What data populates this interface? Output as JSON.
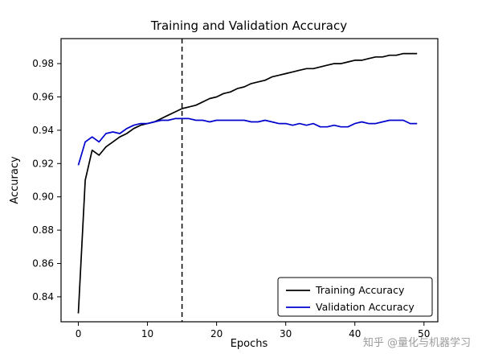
{
  "figure": {
    "title": "Training and Validation Accuracy",
    "xlabel": "Epochs",
    "ylabel": "Accuracy",
    "watermark": "知乎 @量化与机器学习"
  },
  "chart_data": {
    "type": "line",
    "title": "Training and Validation Accuracy",
    "xlabel": "Epochs",
    "ylabel": "Accuracy",
    "grid": false,
    "xlim": [
      -2.5,
      52
    ],
    "ylim": [
      0.825,
      0.995
    ],
    "xticks": [
      0,
      10,
      20,
      30,
      40,
      50
    ],
    "yticks": [
      0.84,
      0.86,
      0.88,
      0.9,
      0.92,
      0.94,
      0.96,
      0.98
    ],
    "vline_x": 15,
    "vline_style": "dashed",
    "legend": {
      "position": "lower right",
      "entries": [
        "Training Accuracy",
        "Validation Accuracy"
      ]
    },
    "x": [
      0,
      1,
      2,
      3,
      4,
      5,
      6,
      7,
      8,
      9,
      10,
      11,
      12,
      13,
      14,
      15,
      16,
      17,
      18,
      19,
      20,
      21,
      22,
      23,
      24,
      25,
      26,
      27,
      28,
      29,
      30,
      31,
      32,
      33,
      34,
      35,
      36,
      37,
      38,
      39,
      40,
      41,
      42,
      43,
      44,
      45,
      46,
      47,
      48,
      49
    ],
    "series": [
      {
        "name": "Training Accuracy",
        "color": "#000000",
        "values": [
          0.83,
          0.91,
          0.928,
          0.925,
          0.93,
          0.933,
          0.936,
          0.938,
          0.941,
          0.943,
          0.944,
          0.945,
          0.947,
          0.949,
          0.951,
          0.953,
          0.954,
          0.955,
          0.957,
          0.959,
          0.96,
          0.962,
          0.963,
          0.965,
          0.966,
          0.968,
          0.969,
          0.97,
          0.972,
          0.973,
          0.974,
          0.975,
          0.976,
          0.977,
          0.977,
          0.978,
          0.979,
          0.98,
          0.98,
          0.981,
          0.982,
          0.982,
          0.983,
          0.984,
          0.984,
          0.985,
          0.985,
          0.986,
          0.986,
          0.986
        ]
      },
      {
        "name": "Validation Accuracy",
        "color": "#0000cd",
        "values": [
          0.919,
          0.933,
          0.936,
          0.933,
          0.938,
          0.939,
          0.938,
          0.941,
          0.943,
          0.944,
          0.944,
          0.945,
          0.946,
          0.946,
          0.947,
          0.947,
          0.947,
          0.946,
          0.946,
          0.945,
          0.946,
          0.946,
          0.946,
          0.946,
          0.946,
          0.945,
          0.945,
          0.946,
          0.945,
          0.944,
          0.944,
          0.943,
          0.944,
          0.943,
          0.944,
          0.942,
          0.942,
          0.943,
          0.942,
          0.942,
          0.944,
          0.945,
          0.944,
          0.944,
          0.945,
          0.946,
          0.946,
          0.946,
          0.944,
          0.944
        ]
      }
    ]
  }
}
